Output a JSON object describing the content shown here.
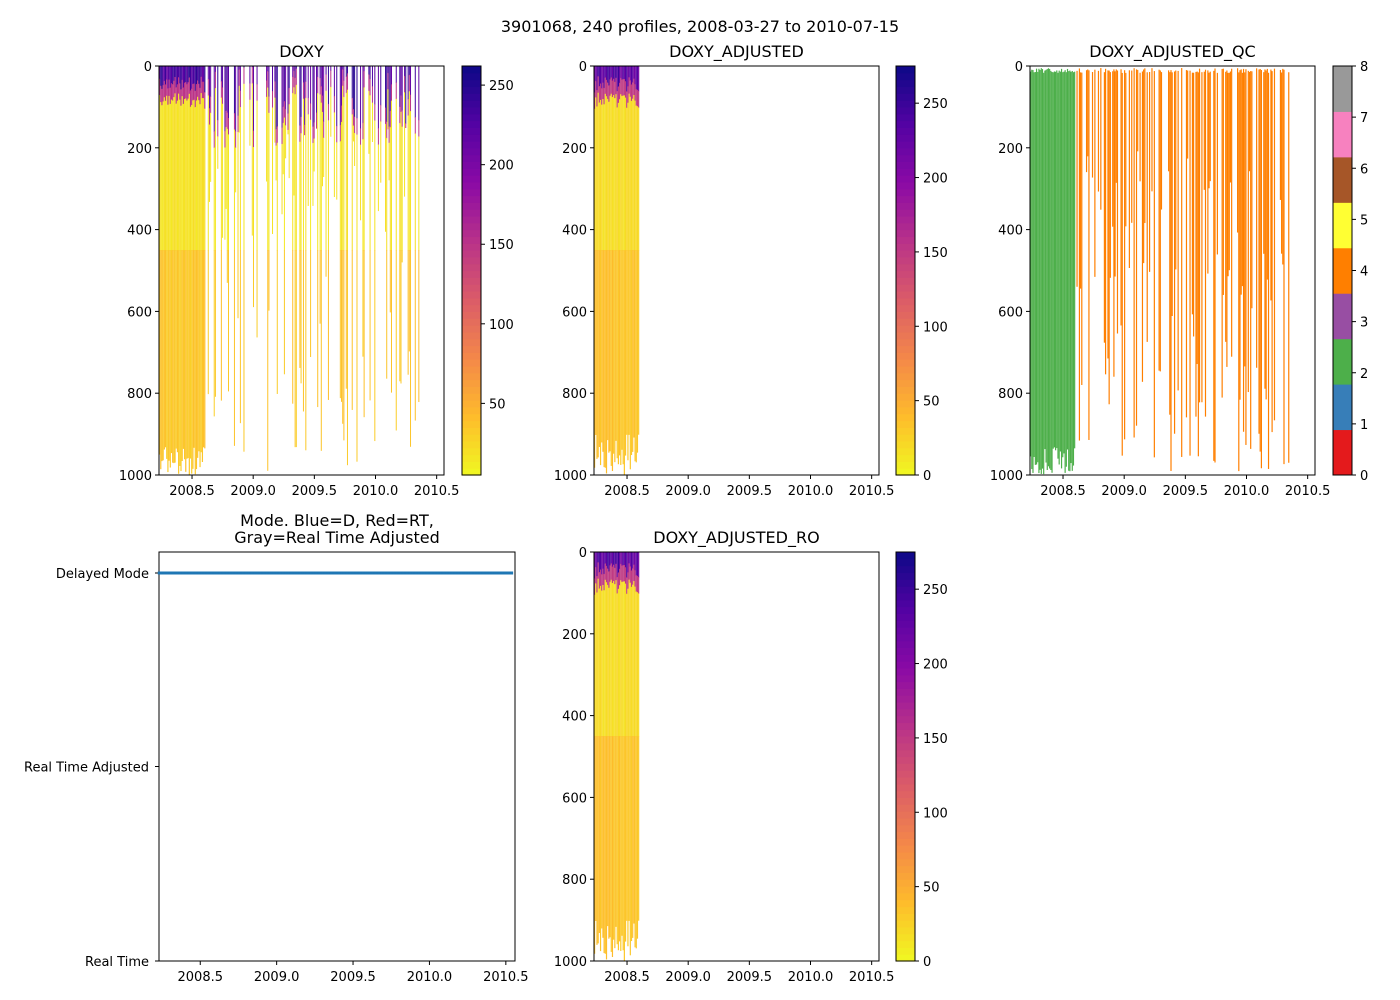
{
  "figure_title": "3901068, 240 profiles, 2008-03-27 to 2010-07-15",
  "chart_data": [
    {
      "id": "doxy",
      "type": "heatmap",
      "title": "DOXY",
      "xlim": [
        2008.23,
        2010.56
      ],
      "ylim": [
        1000,
        0
      ],
      "xticks": [
        2008.5,
        2009.0,
        2009.5,
        2010.0,
        2010.5
      ],
      "yticks": [
        0,
        200,
        400,
        600,
        800,
        1000
      ],
      "colormap": "plasma_r",
      "colorbar": {
        "range": [
          5,
          262
        ],
        "ticks": [
          50,
          100,
          150,
          200,
          250
        ]
      },
      "profiles": {
        "time_range": [
          2008.23,
          2010.54
        ],
        "count": 240,
        "surface_range": [
          0,
          180
        ],
        "deep_values": [
          10,
          40
        ],
        "note": "DOXY values shown as vertical profile columns"
      }
    },
    {
      "id": "doxy_adjusted",
      "type": "heatmap",
      "title": "DOXY_ADJUSTED",
      "xlim": [
        2008.23,
        2010.56
      ],
      "ylim": [
        1000,
        0
      ],
      "xticks": [
        2008.5,
        2009.0,
        2009.5,
        2010.0,
        2010.5
      ],
      "yticks": [
        0,
        200,
        400,
        600,
        800,
        1000
      ],
      "colormap": "plasma_r",
      "colorbar": {
        "range": [
          0,
          275
        ],
        "ticks": [
          0,
          50,
          100,
          150,
          200,
          250
        ]
      },
      "data_time_range": [
        2008.23,
        2008.6
      ]
    },
    {
      "id": "doxy_adjusted_qc",
      "type": "heatmap",
      "title": "DOXY_ADJUSTED_QC",
      "xlim": [
        2008.23,
        2010.56
      ],
      "ylim": [
        1000,
        0
      ],
      "xticks": [
        2008.5,
        2009.0,
        2009.5,
        2010.0,
        2010.5
      ],
      "yticks": [
        0,
        200,
        400,
        600,
        800,
        1000
      ],
      "colorbar": {
        "range": [
          0,
          8
        ],
        "ticks": [
          0,
          1,
          2,
          3,
          4,
          5,
          6,
          7,
          8
        ],
        "colors": [
          "#e41a1c",
          "#377eb8",
          "#4daf4a",
          "#984ea3",
          "#ff7f00",
          "#ffff33",
          "#a65628",
          "#f781bf",
          "#999999"
        ]
      },
      "qc_by_period": [
        {
          "from": 2008.23,
          "to": 2008.6,
          "flag": 2
        },
        {
          "from": 2008.6,
          "to": 2010.54,
          "flag": 4
        }
      ]
    },
    {
      "id": "mode",
      "type": "scatter",
      "title_lines": [
        "Mode. Blue=D, Red=RT,",
        "Gray=Real Time Adjusted"
      ],
      "xlim": [
        2008.23,
        2010.56
      ],
      "xticks": [
        2008.5,
        2009.0,
        2009.5,
        2010.0,
        2010.5
      ],
      "categories": [
        "Real Time",
        "Real Time Adjusted",
        "Delayed Mode"
      ],
      "series": [
        {
          "name": "Delayed Mode",
          "color": "#1f77b4",
          "x_range": [
            2008.23,
            2010.54
          ],
          "count": 240,
          "category": "Delayed Mode"
        }
      ]
    },
    {
      "id": "doxy_adjusted_ro",
      "type": "heatmap",
      "title": "DOXY_ADJUSTED_RO",
      "xlim": [
        2008.23,
        2010.56
      ],
      "ylim": [
        1000,
        0
      ],
      "xticks": [
        2008.5,
        2009.0,
        2009.5,
        2010.0,
        2010.5
      ],
      "yticks": [
        0,
        200,
        400,
        600,
        800,
        1000
      ],
      "colormap": "plasma_r",
      "colorbar": {
        "range": [
          0,
          275
        ],
        "ticks": [
          0,
          50,
          100,
          150,
          200,
          250
        ]
      },
      "data_time_range": [
        2008.23,
        2008.6
      ]
    }
  ]
}
